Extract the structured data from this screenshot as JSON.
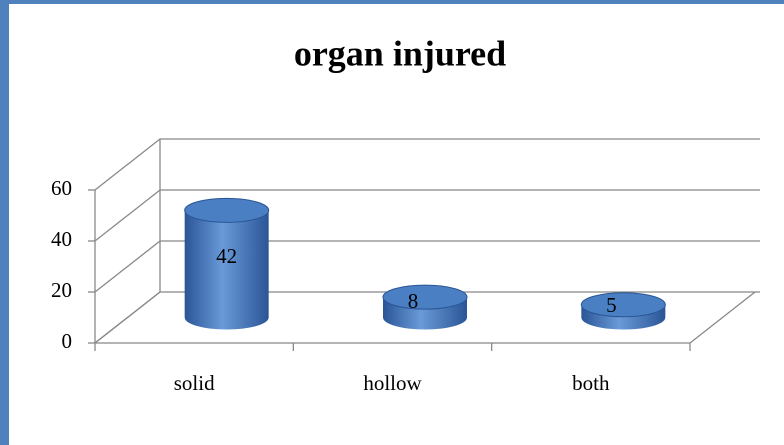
{
  "chart_data": {
    "type": "bar3d",
    "title": "organ injured",
    "categories": [
      "solid",
      "hollow",
      "both"
    ],
    "values": [
      42,
      8,
      5
    ],
    "color": "#3a6fb5",
    "ylim": [
      0,
      60
    ],
    "yticks": [
      0,
      20,
      40,
      60
    ],
    "grid": true
  }
}
